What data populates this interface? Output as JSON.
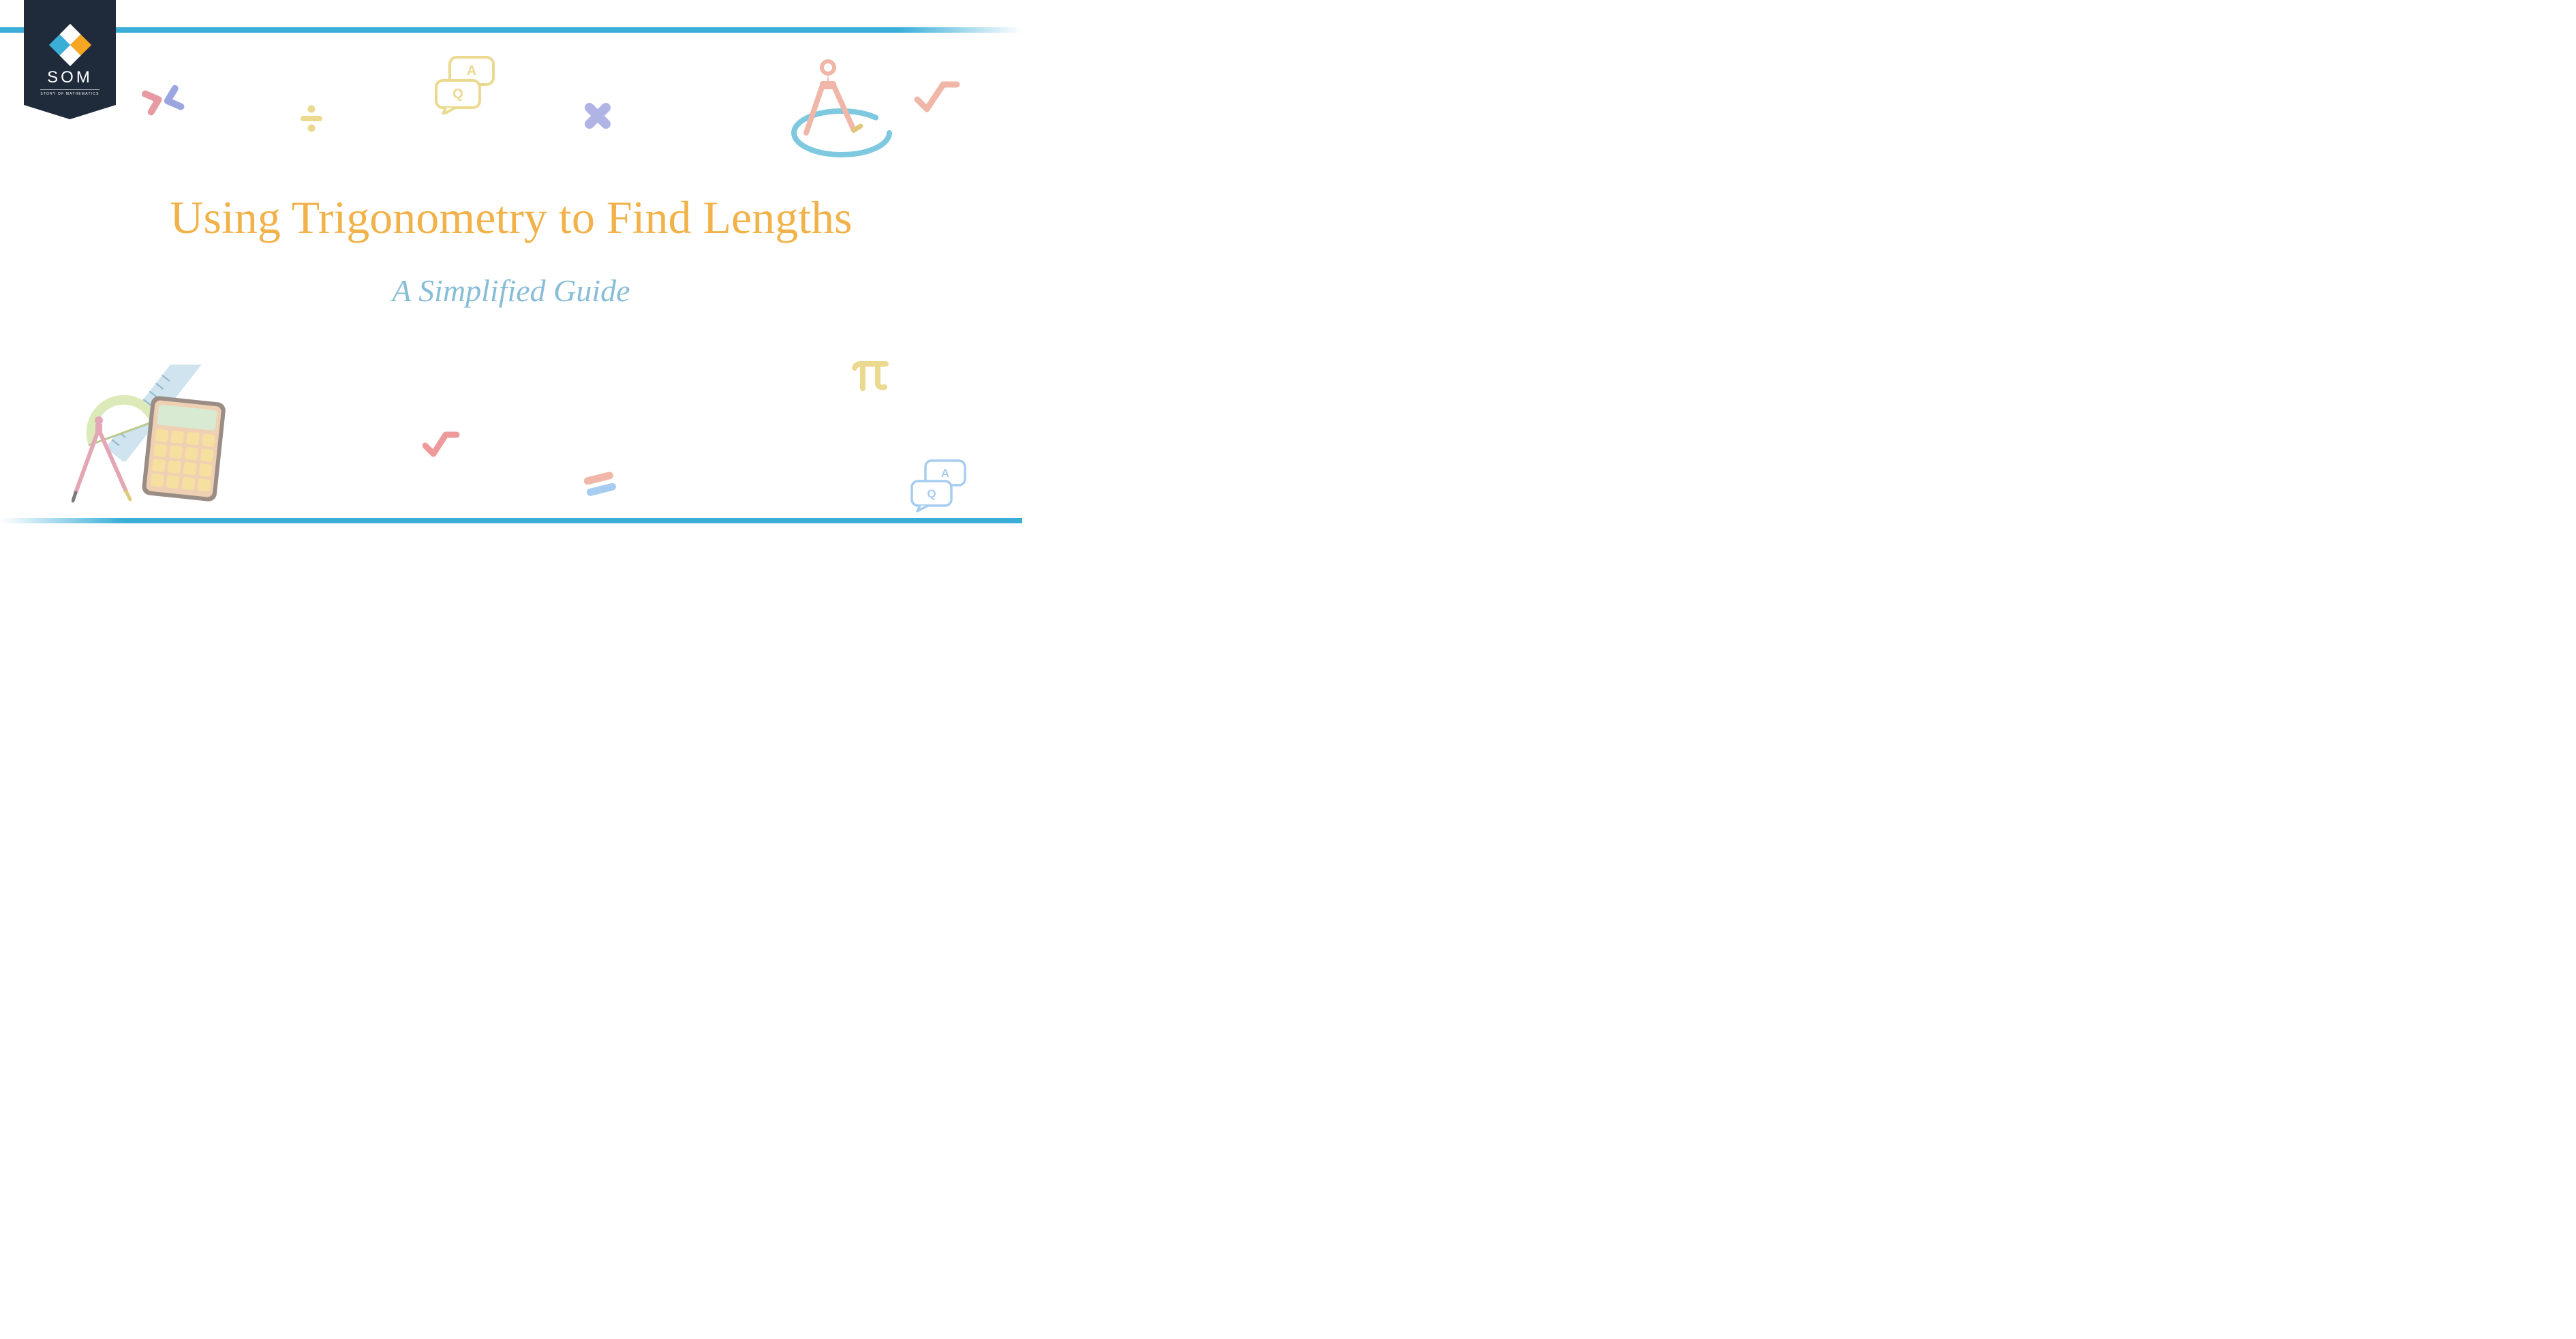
{
  "logo": {
    "title": "SOM",
    "subtitle": "STORY OF MATHEMATICS",
    "badge_color": "#1f2a3a",
    "icon_colors": {
      "tl": "#ffffff",
      "tr": "#f5a623",
      "bl": "#3baed8",
      "br": "#ffffff"
    }
  },
  "heading": {
    "title": "Using Trigonometry to Find Lengths",
    "title_color": "#f2b24a",
    "title_fontsize": 68,
    "subtitle": "A Simplified Guide",
    "subtitle_color": "#88bdd7",
    "subtitle_fontsize": 46
  },
  "borders": {
    "color": "#3baed8",
    "thickness": 8
  },
  "decorations": {
    "chevrons": {
      "color1": "#e89aa2",
      "color2": "#9ba6e0"
    },
    "divide": {
      "color": "#ecd990"
    },
    "qa_top": {
      "stroke": "#ecd990"
    },
    "times": {
      "color": "#b0b4e5"
    },
    "compass_ellipse": {
      "compass": "#f0b7a8",
      "ellipse": "#7ec9e0"
    },
    "check": {
      "color": "#f0b7a8"
    },
    "sqrt_red": {
      "color": "#ef9a9a"
    },
    "equals": {
      "color1": "#f0b7a8",
      "color2": "#a6cdf0"
    },
    "pi": {
      "color": "#ecd990"
    },
    "qa_bottom": {
      "stroke": "#a6cdf0"
    },
    "calc_cluster": {
      "protractor": "#dce9b8",
      "ruler": "#cfe4ef",
      "compass": "#e3a6b5",
      "calc_body": "#f0d0b2",
      "calc_frame": "#9a8d86",
      "calc_screen": "#d9ead3",
      "calc_btn1": "#f6e0a0",
      "calc_btn2": "#f6e0a0"
    }
  }
}
